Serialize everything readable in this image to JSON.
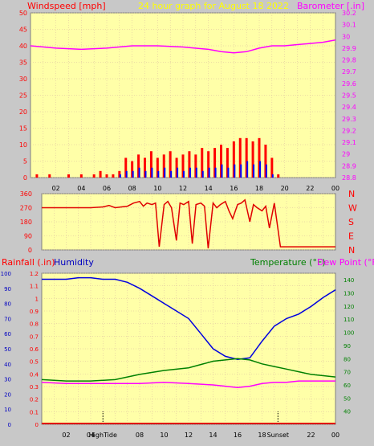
{
  "header": {
    "left_label": "Windspeed [mph]",
    "center_label": "24 hour graph for   August 18 2022",
    "right_label": "Barometer [.in]"
  },
  "footer_left": {
    "rain_label": "Rainfall (.in)",
    "humidity_label": "Humidity"
  },
  "footer_right": {
    "temp_label": "Temperature (°F)",
    "dew_label": "Dew Point (°F)"
  },
  "colors": {
    "plot_bg": "#ffffa8",
    "frame_bg": "#c8c8c8",
    "grid": "#d8b8a0",
    "wind_gust": "#ff0000",
    "wind_avg": "#0000ff",
    "wind_green": "#008000",
    "barometer": "#ff00ff",
    "direction": "#e00000",
    "humidity": "#0000e0",
    "temperature": "#008000",
    "dewpoint": "#ff00ff",
    "rainfall": "#e00000",
    "red_label": "#ff0000",
    "yellow_label": "#ffff00",
    "green_label": "#008000",
    "blue_label": "#0000c0",
    "magenta_label": "#ff00ff"
  },
  "chart_data": [
    {
      "type": "line",
      "panel": "wind_barometer",
      "x_unit": "hour",
      "x_ticks": [
        "02",
        "04",
        "06",
        "08",
        "10",
        "12",
        "14",
        "16",
        "18",
        "20",
        "22",
        "00"
      ],
      "y_left": {
        "label": "Windspeed [mph]",
        "ylim": [
          0,
          50
        ],
        "ticks": [
          "0",
          "5",
          "10",
          "15",
          "20",
          "25",
          "30",
          "35",
          "40",
          "45",
          "50"
        ]
      },
      "y_right": {
        "label": "Barometer [.in]",
        "ylim": [
          28.8,
          30.2
        ],
        "ticks": [
          "28.8",
          "28.9",
          "29",
          "29.1",
          "29.2",
          "29.3",
          "29.4",
          "29.5",
          "29.6",
          "29.7",
          "29.8",
          "29.9",
          "30",
          "30.1",
          "30.2"
        ]
      },
      "series": [
        {
          "name": "Barometer",
          "x": [
            0,
            2,
            4,
            6,
            8,
            10,
            12,
            14,
            15,
            16,
            17,
            18,
            19,
            20,
            21,
            22,
            23,
            24
          ],
          "values": [
            29.92,
            29.9,
            29.89,
            29.9,
            29.92,
            29.92,
            29.91,
            29.89,
            29.87,
            29.86,
            29.87,
            29.9,
            29.92,
            29.92,
            29.93,
            29.94,
            29.95,
            29.97
          ]
        },
        {
          "name": "Wind Gust",
          "x": [
            0,
            0.5,
            1,
            1.5,
            2,
            2.5,
            3,
            3.5,
            4,
            4.5,
            5,
            5.5,
            6,
            6.5,
            7,
            7.5,
            8,
            8.5,
            9,
            9.5,
            10,
            10.5,
            11,
            11.5,
            12,
            12.5,
            13,
            13.5,
            14,
            14.5,
            15,
            15.5,
            16,
            16.5,
            17,
            17.5,
            18,
            18.5,
            19,
            19.5,
            20,
            21,
            22,
            23,
            24
          ],
          "values": [
            0,
            1,
            0,
            1,
            0,
            0,
            1,
            0,
            1,
            0,
            1,
            2,
            1,
            1,
            2,
            6,
            5,
            7,
            6,
            8,
            6,
            7,
            8,
            6,
            7,
            8,
            7,
            9,
            8,
            9,
            10,
            9,
            11,
            12,
            12,
            11,
            12,
            10,
            6,
            1,
            0,
            0,
            0,
            0,
            0
          ]
        },
        {
          "name": "Wind Average",
          "x": [
            0,
            2,
            4,
            6,
            6.5,
            7,
            7.5,
            8,
            8.5,
            9,
            9.5,
            10,
            10.5,
            11,
            11.5,
            12,
            12.5,
            13,
            13.5,
            14,
            14.5,
            15,
            15.5,
            16,
            16.5,
            17,
            17.5,
            18,
            18.5,
            19,
            19.5,
            20,
            22,
            24
          ],
          "values": [
            0,
            0,
            0,
            0,
            0,
            1,
            2,
            2,
            3,
            2,
            3,
            2,
            3,
            2,
            3,
            2,
            3,
            3,
            2,
            3,
            3,
            4,
            3,
            4,
            4,
            5,
            4,
            5,
            4,
            1,
            0,
            0,
            0,
            0
          ]
        }
      ]
    },
    {
      "type": "scatter",
      "panel": "wind_direction",
      "y_left": {
        "label": "Direction",
        "ylim": [
          0,
          360
        ],
        "ticks": [
          "0",
          "90",
          "180",
          "270",
          "360"
        ]
      },
      "y_right_labels": [
        "N",
        "W",
        "S",
        "E",
        "N"
      ],
      "series": [
        {
          "name": "Wind Direction",
          "x": [
            0,
            1,
            2,
            3,
            4,
            5,
            5.5,
            6,
            6.5,
            7,
            7.5,
            8,
            8.3,
            8.6,
            9,
            9.3,
            9.6,
            10,
            10.3,
            10.6,
            11,
            11.3,
            11.6,
            12,
            12.3,
            12.6,
            13,
            13.3,
            13.6,
            14,
            14.3,
            14.6,
            15,
            15.3,
            15.6,
            16,
            16.3,
            16.6,
            17,
            17.3,
            17.6,
            18,
            18.3,
            18.6,
            19,
            19.5,
            20,
            22,
            24
          ],
          "values": [
            270,
            270,
            270,
            270,
            270,
            275,
            285,
            270,
            275,
            280,
            300,
            310,
            280,
            300,
            290,
            300,
            20,
            290,
            310,
            270,
            60,
            300,
            290,
            310,
            40,
            290,
            300,
            280,
            10,
            300,
            270,
            290,
            310,
            250,
            200,
            290,
            300,
            320,
            180,
            290,
            270,
            250,
            280,
            140,
            300,
            20,
            20,
            20,
            20
          ]
        }
      ]
    },
    {
      "type": "line",
      "panel": "humidity_temperature",
      "y_left_outer": {
        "label": "Humidity",
        "ylim": [
          0,
          100
        ],
        "ticks": [
          "0",
          "10",
          "20",
          "30",
          "40",
          "50",
          "60",
          "70",
          "80",
          "90",
          "100"
        ]
      },
      "y_left_inner": {
        "label": "Rainfall (.in)",
        "ylim": [
          0,
          1.2
        ],
        "ticks": [
          "0",
          "0.1",
          "0.2",
          "0.3",
          "0.4",
          "0.5",
          "0.6",
          "0.7",
          "0.8",
          "0.9",
          "1",
          "1.1",
          "1.2"
        ]
      },
      "y_right": {
        "label": "Temperature (°F)",
        "ylim": [
          30,
          145
        ],
        "ticks": [
          "40",
          "50",
          "60",
          "70",
          "80",
          "90",
          "100",
          "110",
          "120",
          "130",
          "140"
        ]
      },
      "annotations": [
        "HighTide",
        "Sunset"
      ],
      "series": [
        {
          "name": "Humidity",
          "x": [
            0,
            1,
            2,
            3,
            4,
            5,
            6,
            7,
            8,
            9,
            10,
            11,
            12,
            13,
            14,
            15,
            16,
            17,
            18,
            19,
            20,
            21,
            22,
            23,
            24
          ],
          "values": [
            96,
            96,
            96,
            97,
            97,
            96,
            96,
            94,
            90,
            85,
            80,
            75,
            70,
            60,
            50,
            45,
            43,
            44,
            55,
            65,
            70,
            73,
            78,
            84,
            89
          ]
        },
        {
          "name": "Temperature",
          "x": [
            0,
            2,
            4,
            6,
            8,
            10,
            12,
            14,
            15,
            16,
            17,
            18,
            19,
            20,
            21,
            22,
            23,
            24
          ],
          "values": [
            64,
            63,
            63,
            64,
            68,
            71,
            73,
            78,
            79,
            80,
            79,
            76,
            74,
            72,
            70,
            68,
            67,
            66
          ]
        },
        {
          "name": "Dew Point",
          "x": [
            0,
            2,
            4,
            6,
            8,
            10,
            12,
            14,
            15,
            16,
            17,
            18,
            19,
            20,
            21,
            22,
            23,
            24
          ],
          "values": [
            62,
            61,
            61,
            61,
            61,
            62,
            61,
            60,
            59,
            58,
            59,
            61,
            62,
            62,
            63,
            63,
            63,
            63
          ]
        },
        {
          "name": "Rainfall",
          "x": [
            0,
            24
          ],
          "values": [
            0,
            0
          ]
        }
      ]
    }
  ]
}
